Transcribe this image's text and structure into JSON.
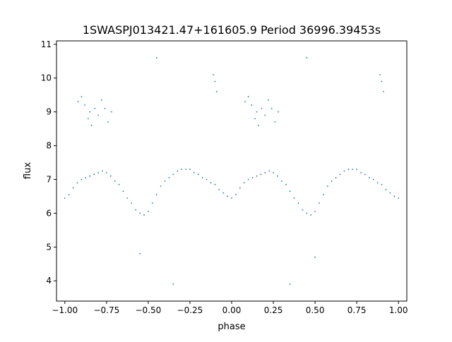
{
  "chart_data": {
    "type": "scatter",
    "title": "1SWASPJ013421.47+161605.9 Period 36996.39453s",
    "xlabel": "phase",
    "ylabel": "flux",
    "xlim": [
      -1.05,
      1.05
    ],
    "ylim": [
      3.4,
      11.1
    ],
    "x_ticks": [
      -1.0,
      -0.75,
      -0.5,
      -0.25,
      0.0,
      0.25,
      0.5,
      0.75,
      1.0
    ],
    "x_tick_labels": [
      "−1.00",
      "−0.75",
      "−0.50",
      "−0.25",
      "0.00",
      "0.25",
      "0.50",
      "0.75",
      "1.00"
    ],
    "y_ticks": [
      4,
      5,
      6,
      7,
      8,
      9,
      10,
      11
    ],
    "y_tick_labels": [
      "4",
      "5",
      "6",
      "7",
      "8",
      "9",
      "10",
      "11"
    ],
    "grid": false,
    "legend": "none",
    "point_color": "#1f77b4",
    "series": [
      {
        "points_main_curve": [
          [
            -1.0,
            6.45
          ],
          [
            -0.975,
            6.55
          ],
          [
            -0.95,
            6.75
          ],
          [
            -0.925,
            6.9
          ],
          [
            -0.9,
            7.0
          ],
          [
            -0.875,
            7.05
          ],
          [
            -0.85,
            7.1
          ],
          [
            -0.825,
            7.15
          ],
          [
            -0.8,
            7.2
          ],
          [
            -0.775,
            7.25
          ],
          [
            -0.75,
            7.2
          ],
          [
            -0.725,
            7.1
          ],
          [
            -0.7,
            6.95
          ],
          [
            -0.675,
            6.85
          ],
          [
            -0.65,
            6.65
          ],
          [
            -0.625,
            6.45
          ],
          [
            -0.6,
            6.3
          ],
          [
            -0.575,
            6.1
          ],
          [
            -0.55,
            6.0
          ],
          [
            -0.525,
            5.95
          ],
          [
            -0.5,
            6.05
          ],
          [
            -0.475,
            6.3
          ],
          [
            -0.45,
            6.55
          ],
          [
            -0.425,
            6.8
          ],
          [
            -0.4,
            6.95
          ],
          [
            -0.375,
            7.05
          ],
          [
            -0.35,
            7.15
          ],
          [
            -0.325,
            7.25
          ],
          [
            -0.3,
            7.3
          ],
          [
            -0.275,
            7.3
          ],
          [
            -0.25,
            7.3
          ],
          [
            -0.225,
            7.2
          ],
          [
            -0.2,
            7.15
          ],
          [
            -0.175,
            7.05
          ],
          [
            -0.15,
            7.0
          ],
          [
            -0.125,
            6.9
          ],
          [
            -0.1,
            6.85
          ],
          [
            -0.075,
            6.7
          ],
          [
            -0.05,
            6.6
          ],
          [
            -0.025,
            6.5
          ],
          [
            0.0,
            6.45
          ],
          [
            0.025,
            6.55
          ],
          [
            0.05,
            6.75
          ],
          [
            0.075,
            6.9
          ],
          [
            0.1,
            7.0
          ],
          [
            0.125,
            7.05
          ],
          [
            0.15,
            7.1
          ],
          [
            0.175,
            7.15
          ],
          [
            0.2,
            7.2
          ],
          [
            0.225,
            7.25
          ],
          [
            0.25,
            7.2
          ],
          [
            0.275,
            7.1
          ],
          [
            0.3,
            6.95
          ],
          [
            0.325,
            6.85
          ],
          [
            0.35,
            6.65
          ],
          [
            0.375,
            6.45
          ],
          [
            0.4,
            6.3
          ],
          [
            0.425,
            6.1
          ],
          [
            0.45,
            6.0
          ],
          [
            0.475,
            5.95
          ],
          [
            0.5,
            6.05
          ],
          [
            0.525,
            6.3
          ],
          [
            0.55,
            6.55
          ],
          [
            0.575,
            6.8
          ],
          [
            0.6,
            6.95
          ],
          [
            0.625,
            7.05
          ],
          [
            0.65,
            7.15
          ],
          [
            0.675,
            7.25
          ],
          [
            0.7,
            7.3
          ],
          [
            0.725,
            7.3
          ],
          [
            0.75,
            7.3
          ],
          [
            0.775,
            7.2
          ],
          [
            0.8,
            7.15
          ],
          [
            0.825,
            7.05
          ],
          [
            0.85,
            7.0
          ],
          [
            0.875,
            6.9
          ],
          [
            0.9,
            6.85
          ],
          [
            0.925,
            6.7
          ],
          [
            0.95,
            6.6
          ],
          [
            0.975,
            6.5
          ],
          [
            1.0,
            6.45
          ]
        ],
        "points_high_cluster": [
          [
            -0.92,
            9.3
          ],
          [
            -0.9,
            9.45
          ],
          [
            -0.88,
            9.2
          ],
          [
            -0.86,
            8.8
          ],
          [
            -0.85,
            9.0
          ],
          [
            -0.84,
            8.6
          ],
          [
            -0.82,
            9.1
          ],
          [
            -0.8,
            8.9
          ],
          [
            -0.78,
            9.35
          ],
          [
            -0.76,
            9.1
          ],
          [
            -0.74,
            8.7
          ],
          [
            -0.72,
            9.0
          ],
          [
            0.08,
            9.3
          ],
          [
            0.1,
            9.45
          ],
          [
            0.12,
            9.2
          ],
          [
            0.14,
            8.8
          ],
          [
            0.15,
            9.0
          ],
          [
            0.16,
            8.6
          ],
          [
            0.18,
            9.1
          ],
          [
            0.2,
            8.9
          ],
          [
            0.22,
            9.35
          ],
          [
            0.24,
            9.1
          ],
          [
            0.26,
            8.7
          ],
          [
            0.28,
            9.0
          ],
          [
            -0.11,
            10.1
          ],
          [
            -0.1,
            9.9
          ],
          [
            -0.09,
            9.6
          ],
          [
            0.89,
            10.1
          ],
          [
            0.9,
            9.9
          ],
          [
            0.91,
            9.6
          ],
          [
            -0.45,
            10.6
          ],
          [
            0.45,
            10.6
          ],
          [
            -0.55,
            4.8
          ],
          [
            0.5,
            4.7
          ],
          [
            -0.35,
            3.9
          ],
          [
            0.35,
            3.9
          ]
        ]
      }
    ]
  }
}
